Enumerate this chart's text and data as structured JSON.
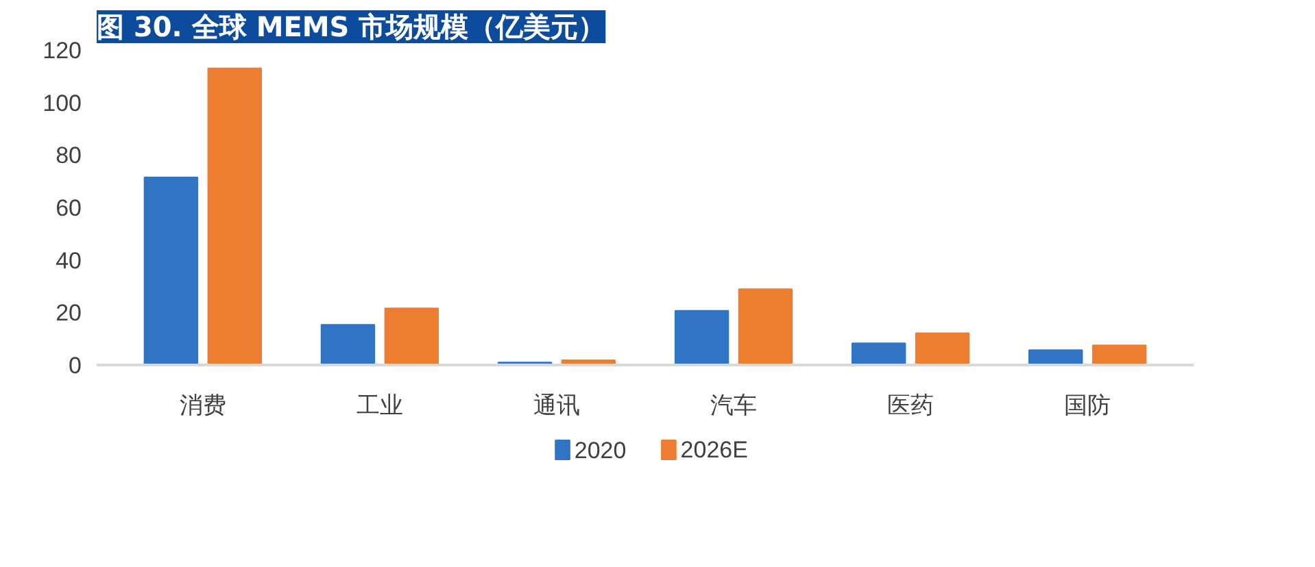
{
  "chart_data": {
    "type": "bar",
    "title": "图 30. 全球 MEMS 市场规模（亿美元）",
    "categories": [
      "消费",
      "工业",
      "通讯",
      "汽车",
      "医药",
      "国防"
    ],
    "series": [
      {
        "name": "2020",
        "color": "#3174c4",
        "values": [
          71.5,
          15.3,
          1.0,
          20.7,
          8.3,
          5.7
        ]
      },
      {
        "name": "2026E",
        "color": "#ed7d31",
        "values": [
          113.0,
          21.6,
          1.8,
          28.9,
          12.1,
          7.5
        ]
      }
    ],
    "ylim": [
      0,
      120
    ],
    "yticks": [
      0,
      20,
      40,
      60,
      80,
      100,
      120
    ],
    "grid": false,
    "legend": "bottom"
  }
}
